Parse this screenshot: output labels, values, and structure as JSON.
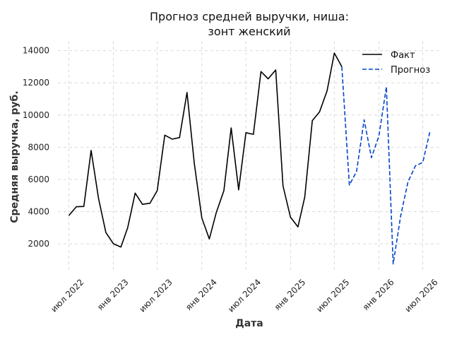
{
  "chart_data": {
    "type": "line",
    "title_lines": [
      "Прогноз средней выручки, ниша:",
      "зонт женский"
    ],
    "xlabel": "Дата",
    "ylabel": "Средняя выручка, руб.",
    "ylim": [
      200,
      14600
    ],
    "yticks": [
      2000,
      4000,
      6000,
      8000,
      10000,
      12000,
      14000
    ],
    "xlim": [
      "2022-05-17",
      "2026-09-16"
    ],
    "xticks": [
      {
        "date": "2022-07-01",
        "label": "июл 2022"
      },
      {
        "date": "2023-01-01",
        "label": "янв 2023"
      },
      {
        "date": "2023-07-01",
        "label": "июл 2023"
      },
      {
        "date": "2024-01-01",
        "label": "янв 2024"
      },
      {
        "date": "2024-07-01",
        "label": "июл 2024"
      },
      {
        "date": "2025-01-01",
        "label": "янв 2025"
      },
      {
        "date": "2025-07-01",
        "label": "июл 2025"
      },
      {
        "date": "2026-01-01",
        "label": "янв 2026"
      },
      {
        "date": "2026-07-01",
        "label": "июл 2026"
      }
    ],
    "grid": true,
    "legend_position": "top-right",
    "series": [
      {
        "name": "Факт",
        "color": "#000000",
        "style": "solid",
        "points": [
          {
            "x": "2022-07-01",
            "y": 3750
          },
          {
            "x": "2022-08-01",
            "y": 4300
          },
          {
            "x": "2022-09-01",
            "y": 4320
          },
          {
            "x": "2022-10-01",
            "y": 7800
          },
          {
            "x": "2022-11-01",
            "y": 4800
          },
          {
            "x": "2022-12-01",
            "y": 2700
          },
          {
            "x": "2023-01-01",
            "y": 2000
          },
          {
            "x": "2023-02-01",
            "y": 1800
          },
          {
            "x": "2023-03-01",
            "y": 3000
          },
          {
            "x": "2023-04-01",
            "y": 5150
          },
          {
            "x": "2023-05-01",
            "y": 4450
          },
          {
            "x": "2023-06-01",
            "y": 4520
          },
          {
            "x": "2023-07-01",
            "y": 5300
          },
          {
            "x": "2023-08-01",
            "y": 8750
          },
          {
            "x": "2023-09-01",
            "y": 8500
          },
          {
            "x": "2023-10-01",
            "y": 8600
          },
          {
            "x": "2023-11-01",
            "y": 11400
          },
          {
            "x": "2023-12-01",
            "y": 7000
          },
          {
            "x": "2024-01-01",
            "y": 3600
          },
          {
            "x": "2024-02-01",
            "y": 2300
          },
          {
            "x": "2024-03-01",
            "y": 3950
          },
          {
            "x": "2024-04-01",
            "y": 5300
          },
          {
            "x": "2024-05-01",
            "y": 9200
          },
          {
            "x": "2024-06-01",
            "y": 5350
          },
          {
            "x": "2024-07-01",
            "y": 8900
          },
          {
            "x": "2024-08-01",
            "y": 8800
          },
          {
            "x": "2024-09-01",
            "y": 12700
          },
          {
            "x": "2024-10-01",
            "y": 12250
          },
          {
            "x": "2024-11-01",
            "y": 12800
          },
          {
            "x": "2024-12-01",
            "y": 5600
          },
          {
            "x": "2025-01-01",
            "y": 3650
          },
          {
            "x": "2025-02-01",
            "y": 3050
          },
          {
            "x": "2025-03-01",
            "y": 4900
          },
          {
            "x": "2025-04-01",
            "y": 9650
          },
          {
            "x": "2025-05-01",
            "y": 10200
          },
          {
            "x": "2025-06-01",
            "y": 11500
          },
          {
            "x": "2025-07-01",
            "y": 13850
          },
          {
            "x": "2025-08-01",
            "y": 13000
          }
        ]
      },
      {
        "name": "Прогноз",
        "color": "#0044cc",
        "style": "dashed",
        "points": [
          {
            "x": "2025-08-01",
            "y": 13000
          },
          {
            "x": "2025-09-01",
            "y": 5650
          },
          {
            "x": "2025-10-01",
            "y": 6500
          },
          {
            "x": "2025-11-01",
            "y": 9700
          },
          {
            "x": "2025-12-01",
            "y": 7350
          },
          {
            "x": "2026-01-01",
            "y": 8700
          },
          {
            "x": "2026-02-01",
            "y": 11750
          },
          {
            "x": "2026-03-01",
            "y": 750
          },
          {
            "x": "2026-04-01",
            "y": 3750
          },
          {
            "x": "2026-05-01",
            "y": 5850
          },
          {
            "x": "2026-06-01",
            "y": 6850
          },
          {
            "x": "2026-07-01",
            "y": 7050
          },
          {
            "x": "2026-08-01",
            "y": 9050
          }
        ]
      }
    ]
  }
}
